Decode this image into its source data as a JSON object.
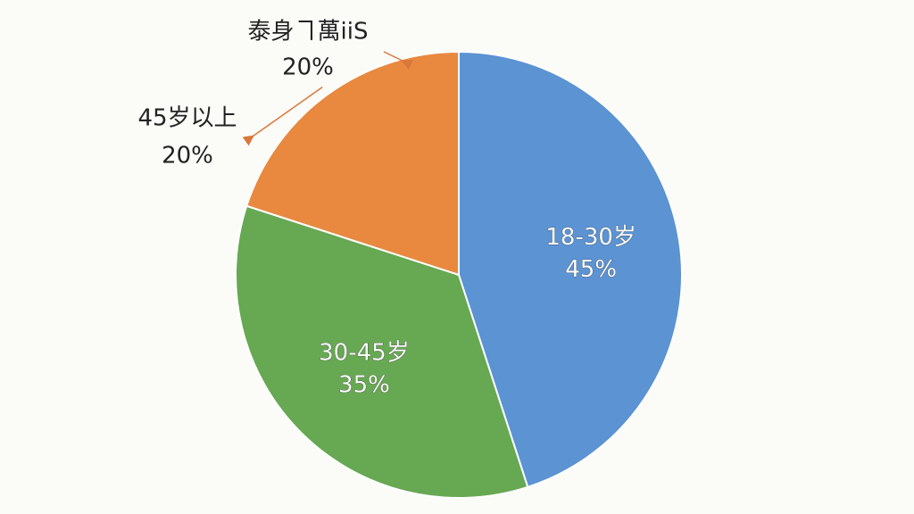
{
  "chart_data": {
    "type": "pie",
    "categories": [
      "18-30岁",
      "30-45岁",
      "45岁以上"
    ],
    "values": [
      45,
      35,
      20
    ],
    "value_labels": [
      "45%",
      "35%",
      "20%"
    ],
    "colors": [
      "#5b93d3",
      "#67a853",
      "#e8893f"
    ],
    "annotations": [
      {
        "text": "泰身ヿ萬iiS",
        "label": "20%"
      }
    ]
  }
}
